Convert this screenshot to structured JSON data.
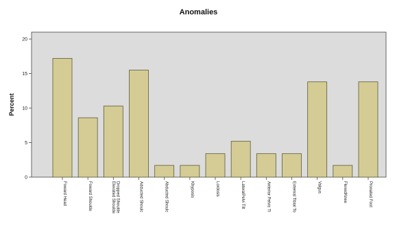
{
  "chart_data": {
    "type": "bar",
    "title": "Anomalies",
    "xlabel": "",
    "ylabel": "Percent",
    "ylim": [
      0,
      21
    ],
    "yticks": [
      0,
      5,
      10,
      15,
      20
    ],
    "grid": false,
    "categories": [
      "Foward Head",
      "Foward Shoulde",
      [
        "Elevated Shoulde",
        "Dropped Shoulde"
      ],
      "Adducted Shoulc",
      "Abducted Shoulc",
      "Khyposis",
      "Lordosis",
      "LateralPelvi Tilt",
      "Anterior Pelvic Ti",
      "External Tibial To",
      "Valgus",
      "FlexedKnee",
      "Pronated Foot"
    ],
    "values": [
      17.2,
      8.6,
      10.3,
      15.5,
      1.7,
      1.7,
      3.4,
      5.2,
      3.4,
      3.4,
      13.8,
      1.7,
      13.8
    ],
    "colors": {
      "plot_bg": "#dcdcdc",
      "bar_fill": "#d4cc94",
      "bar_stroke": "#5a5a3a",
      "axis": "#444444"
    }
  }
}
